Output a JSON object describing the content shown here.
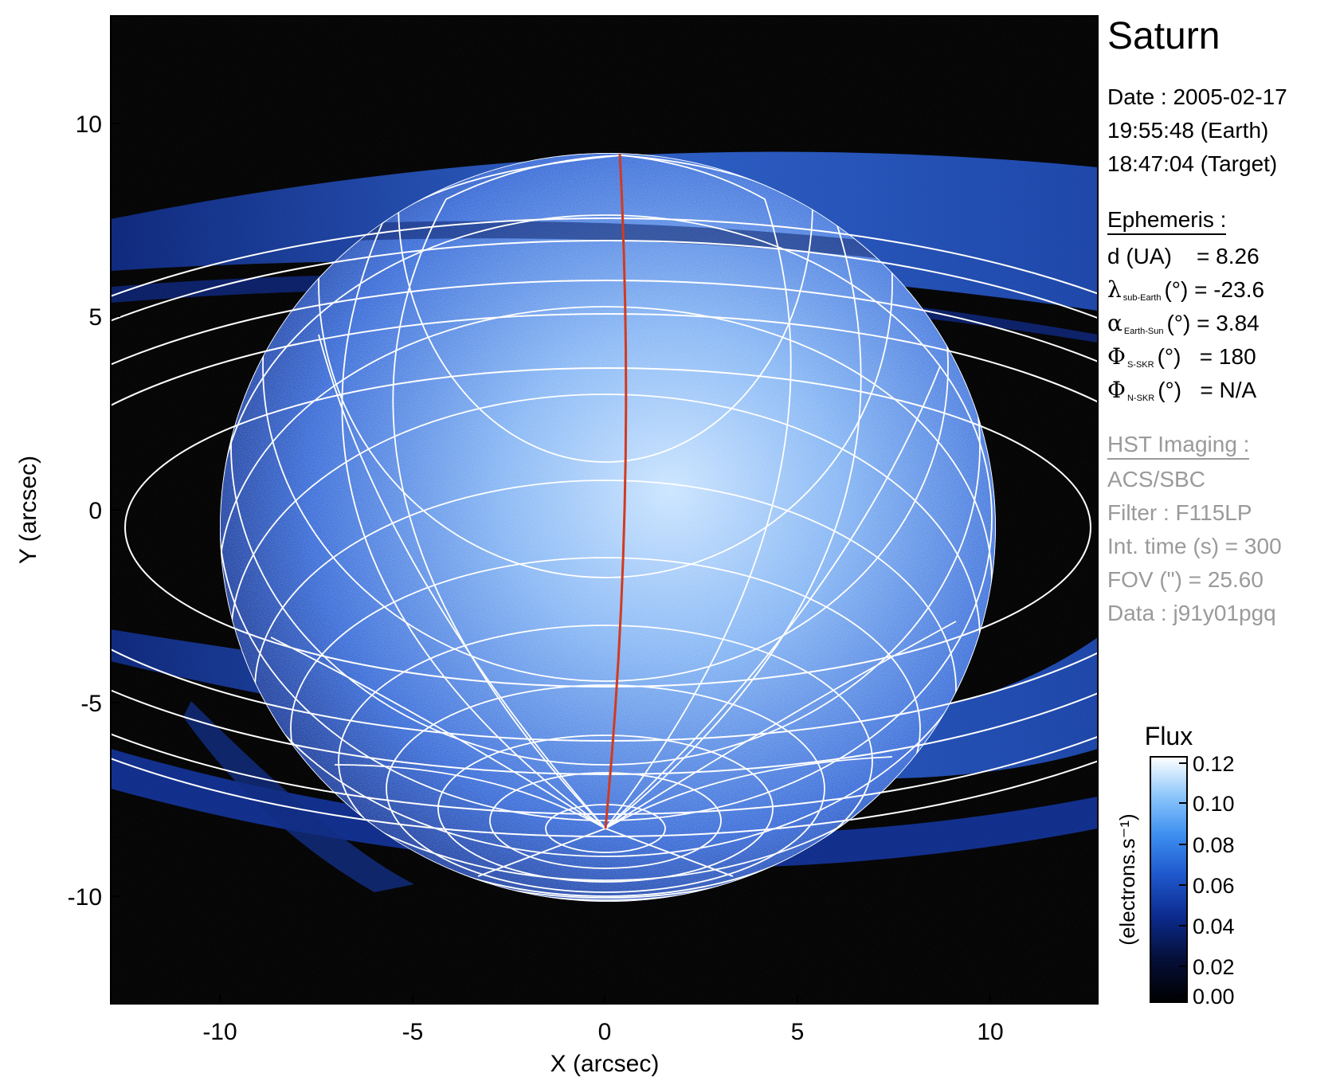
{
  "plot": {
    "x_axis_label": "X (arcsec)",
    "y_axis_label": "Y (arcsec)",
    "x_ticks": [
      "-10",
      "-5",
      "0",
      "5",
      "10"
    ],
    "y_ticks": [
      "10",
      "5",
      "0",
      "-5",
      "-10"
    ]
  },
  "info": {
    "title": "Saturn",
    "date_line": "Date : 2005-02-17",
    "earth_time": "19:55:48 (Earth)",
    "target_time": "18:47:04 (Target)",
    "ephemeris_header": "Ephemeris :",
    "ephemeris": [
      {
        "symbol": "d (UA)",
        "sub": "",
        "unit": "",
        "value": "= 8.26"
      },
      {
        "symbol": "λ",
        "sub": "sub-Earth",
        "unit": "(°)",
        "value": "= -23.6"
      },
      {
        "symbol": "α",
        "sub": "Earth-Sun",
        "unit": "(°)",
        "value": "= 3.84"
      },
      {
        "symbol": "Φ",
        "sub": "S-SKR",
        "unit": "(°)",
        "value": "= 180"
      },
      {
        "symbol": "Φ",
        "sub": "N-SKR",
        "unit": "(°)",
        "value": "= N/A"
      }
    ],
    "hst_header": "HST Imaging :",
    "instrument": "ACS/SBC",
    "filter": "Filter : F115LP",
    "int_time": "Int. time (s) = 300",
    "fov": "FOV (\") = 25.60",
    "data_id": "Data : j91y01pgq"
  },
  "colorbar": {
    "title": "Flux",
    "units": "(electrons.s⁻¹)",
    "ticks": [
      "0.12",
      "0.10",
      "0.08",
      "0.06",
      "0.04",
      "0.02",
      "0.00"
    ]
  },
  "colors": {
    "background": "#000000",
    "planet_light": "#b8d8ff",
    "planet_mid": "#3f7fe6",
    "planet_dark": "#0a2a88",
    "grid": "#ffffff",
    "meridian": "#d23a1f"
  }
}
